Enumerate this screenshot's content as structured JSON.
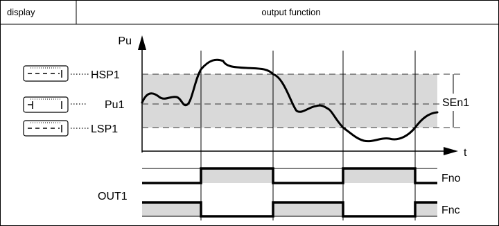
{
  "header": {
    "display_label": "display",
    "output_function_label": "output function"
  },
  "axes": {
    "y_label": "Pu",
    "x_label": "t"
  },
  "levels": {
    "hsp": "HSP1",
    "pu": "Pu1",
    "lsp": "LSP1",
    "sen": "SEn1"
  },
  "output": {
    "name": "OUT1",
    "no_label": "Fno",
    "nc_label": "Fnc"
  },
  "colors": {
    "band_fill": "#d9d9d9",
    "line": "#000000",
    "dash": "#333333"
  }
}
